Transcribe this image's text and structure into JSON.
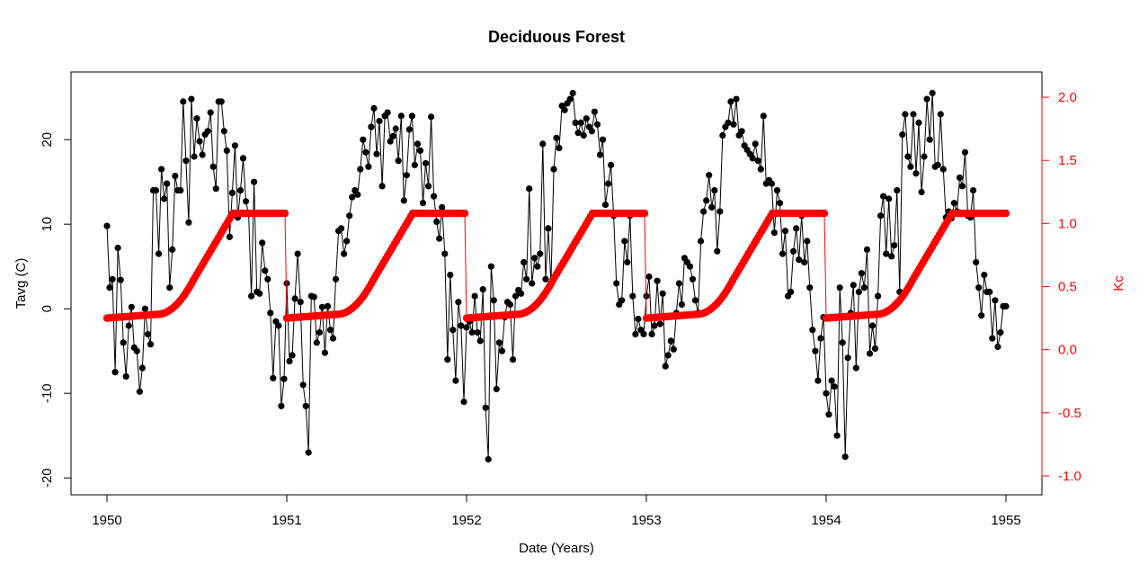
{
  "chart_data": {
    "type": "line",
    "title": "Deciduous Forest",
    "xlabel": "Date (Years)",
    "ylabel": "Tavg (C)",
    "y2label": "Kc",
    "xlim": [
      1949.8,
      1955.2
    ],
    "ylim": [
      -22,
      28
    ],
    "y2lim": [
      -1.15,
      2.2
    ],
    "xticks": [
      1950,
      1951,
      1952,
      1953,
      1954,
      1955
    ],
    "yticks": [
      -20,
      -10,
      0,
      10,
      20
    ],
    "y2ticks": [
      -1.0,
      -0.5,
      0.0,
      0.5,
      1.0,
      1.5,
      2.0
    ],
    "y2ticklabels": [
      "-1.0",
      "-0.5",
      "0.0",
      "0.5",
      "1.0",
      "1.5",
      "2.0"
    ],
    "grid": false,
    "colors": {
      "temperature": "#000000",
      "kc": "#ff0000"
    },
    "year_starts": [
      1950,
      1951,
      1952,
      1953,
      1954
    ],
    "kc_profile": {
      "stage_end_fractions": [
        0.28,
        0.48,
        0.7,
        1.0
      ],
      "stage_end_values": [
        0.25,
        0.55,
        1.08,
        1.08
      ],
      "initial": 0.25,
      "samples_per_year": 100
    },
    "series": [
      {
        "axis": "left",
        "marker": "circle",
        "color": "#000000",
        "values": [
          [
            9.8,
            2.5,
            3.5,
            -7.5,
            7.2,
            3.4,
            -4,
            -8,
            -2,
            0.2,
            -4.6,
            -5,
            -9.8,
            -7,
            0,
            -3,
            -4.2,
            14,
            14,
            6.5,
            16.5,
            13,
            14.8,
            2.5,
            7,
            15.7,
            14,
            14,
            24.5,
            17.5,
            10.2,
            24.8,
            18,
            22.5,
            19.8,
            18.2,
            20.6,
            21,
            23.2,
            16.8,
            14.2,
            24.5,
            24.5,
            21,
            18.7,
            8.5,
            13.7,
            19.3,
            10.8,
            14,
            17.8,
            12.7,
            11.2,
            1.5,
            15,
            2,
            1.8,
            7.8,
            4.5,
            3.5,
            -0.5,
            -8.2,
            -1.5,
            -2,
            -11.5,
            -8.3
          ],
          [
            3,
            -6.2,
            -5.5,
            1.2,
            6.5,
            0.8,
            -9,
            -11.5,
            -17,
            1.5,
            1.4,
            -4,
            -2.8,
            0.2,
            -5.2,
            0.3,
            -2.5,
            -3.5,
            3.5,
            9.2,
            9.5,
            6.5,
            8,
            11,
            13.2,
            14,
            13.5,
            16.5,
            20,
            18.5,
            16.8,
            21.5,
            23.7,
            18.3,
            22.2,
            14.5,
            22.8,
            23.2,
            19.8,
            20.4,
            21.3,
            17.5,
            22.8,
            12.8,
            15.8,
            21.2,
            22.8,
            17,
            19.5,
            18.7,
            12.5,
            17.2,
            14.5,
            22.7,
            13.3,
            10.3,
            8.3,
            12,
            6.5,
            -6,
            4,
            -2.5,
            -8.5,
            0.8,
            -2,
            -11
          ],
          [
            -2.2,
            -1.5,
            -2.8,
            1.5,
            -2.8,
            -3.8,
            2.3,
            -11.7,
            -17.8,
            5,
            1,
            -9.5,
            -4,
            -5,
            -1,
            0.8,
            0.5,
            -6,
            1.5,
            2.2,
            1.8,
            5.5,
            3.5,
            14.2,
            3,
            6,
            5,
            6.5,
            19.5,
            3.5,
            9.5,
            3,
            16.5,
            20.2,
            19,
            24,
            23.5,
            24.3,
            24.8,
            25.5,
            22,
            20.8,
            22,
            20.5,
            22.5,
            21.5,
            21,
            23.3,
            21.8,
            18.2,
            20,
            12.3,
            14.8,
            17,
            11,
            3,
            0.5,
            1,
            8,
            5.5,
            11,
            1.5,
            -3,
            -1.2,
            -2.5,
            -3
          ],
          [
            1.5,
            3.8,
            -3,
            -2,
            3.3,
            -1.8,
            1.8,
            -6.8,
            -5.5,
            -3.8,
            -4.8,
            -0.5,
            3,
            0.5,
            6,
            5.5,
            5,
            3.5,
            1,
            -0.5,
            8,
            11.5,
            12.8,
            15.8,
            12,
            14,
            6.8,
            11.5,
            20.5,
            21.5,
            22,
            24.5,
            21.8,
            24.8,
            20.5,
            21,
            19.3,
            18.8,
            18.3,
            17.8,
            19.5,
            17.5,
            16.5,
            22.8,
            14.8,
            15.2,
            14.8,
            9,
            14,
            12.5,
            6.5,
            9.2,
            1.5,
            2,
            6.8,
            9.5,
            5.8,
            11,
            5.5,
            8,
            2.5,
            -2.5,
            -5,
            -8.5,
            -3.5,
            -1
          ],
          [
            -10,
            -12.5,
            -8.5,
            -9.2,
            -15,
            2.5,
            -4,
            -17.5,
            -5.8,
            -0.5,
            2.8,
            -7,
            2,
            4.2,
            2.5,
            7,
            -5.3,
            -2,
            -4.7,
            1.5,
            11,
            13.3,
            6.5,
            13,
            6.2,
            7.5,
            14,
            2,
            20.6,
            23,
            18,
            16.8,
            23,
            16,
            22,
            13.8,
            18,
            24.8,
            20,
            25.5,
            16.8,
            17,
            23,
            16.5,
            10.8,
            11.5,
            10.7,
            12.5,
            11.5,
            15.5,
            14.5,
            18.5,
            11,
            10.8,
            14,
            5.5,
            2.5,
            -0.8,
            4,
            2,
            2,
            -3.5,
            1,
            -4.5,
            -2.8,
            0.3
          ]
        ]
      },
      {
        "axis": "right",
        "marker": "circle",
        "color": "#ff0000",
        "values": []
      }
    ]
  }
}
